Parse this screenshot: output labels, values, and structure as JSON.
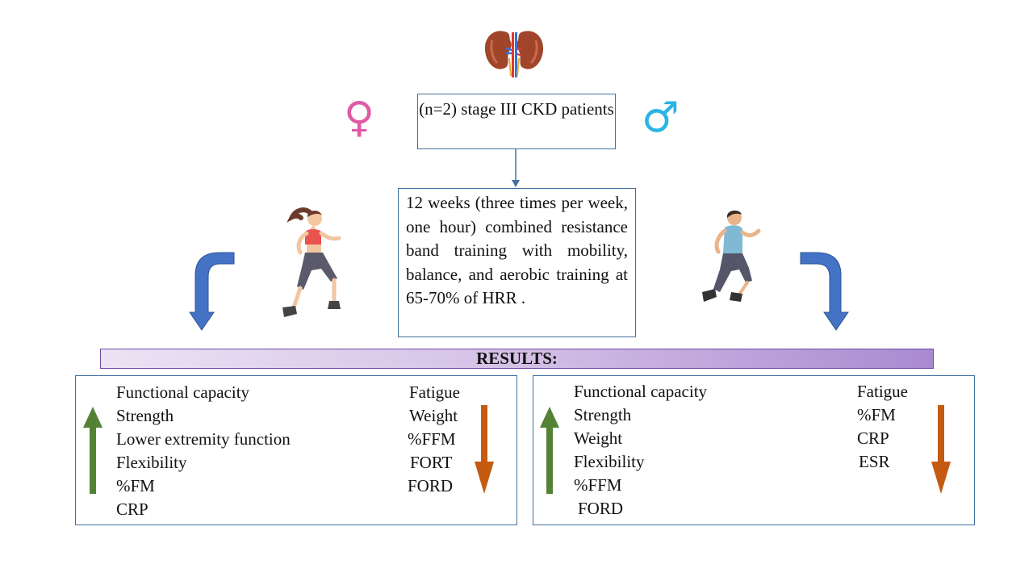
{
  "patients_box": {
    "text": "(n=2) stage III CKD patients"
  },
  "symbols": {
    "female": "♀",
    "male": "♂",
    "female_color": "#e05aa6",
    "male_color": "#2ab4e4"
  },
  "protocol_box": {
    "text": "12 weeks (three times per week, one hour) combined resistance band training with mobility, balance, and aerobic training at 65-70% of HRR ."
  },
  "results_label": "RESULTS:",
  "female_results": {
    "increased": [
      "Functional capacity",
      "Strength",
      "Lower extremity function",
      "Flexibility",
      "%FM",
      "CRP"
    ],
    "decreased": [
      "Fatigue",
      "Weight",
      "%FFM",
      "FORT",
      "FORD"
    ]
  },
  "male_results": {
    "increased": [
      "Functional capacity",
      "Strength",
      "Weight",
      "Flexibility",
      "%FFM",
      "FORD"
    ],
    "decreased": [
      "Fatigue",
      "%FM",
      "CRP",
      "ESR"
    ]
  },
  "colors": {
    "box_border": "#41719c",
    "curved_arrow": "#4472c4",
    "increase_arrow": "#548235",
    "decrease_arrow": "#c55a11",
    "kidney": "#a0442a"
  },
  "icons": [
    "kidney-icon",
    "female-symbol-icon",
    "male-symbol-icon",
    "running-woman-icon",
    "running-man-icon"
  ]
}
